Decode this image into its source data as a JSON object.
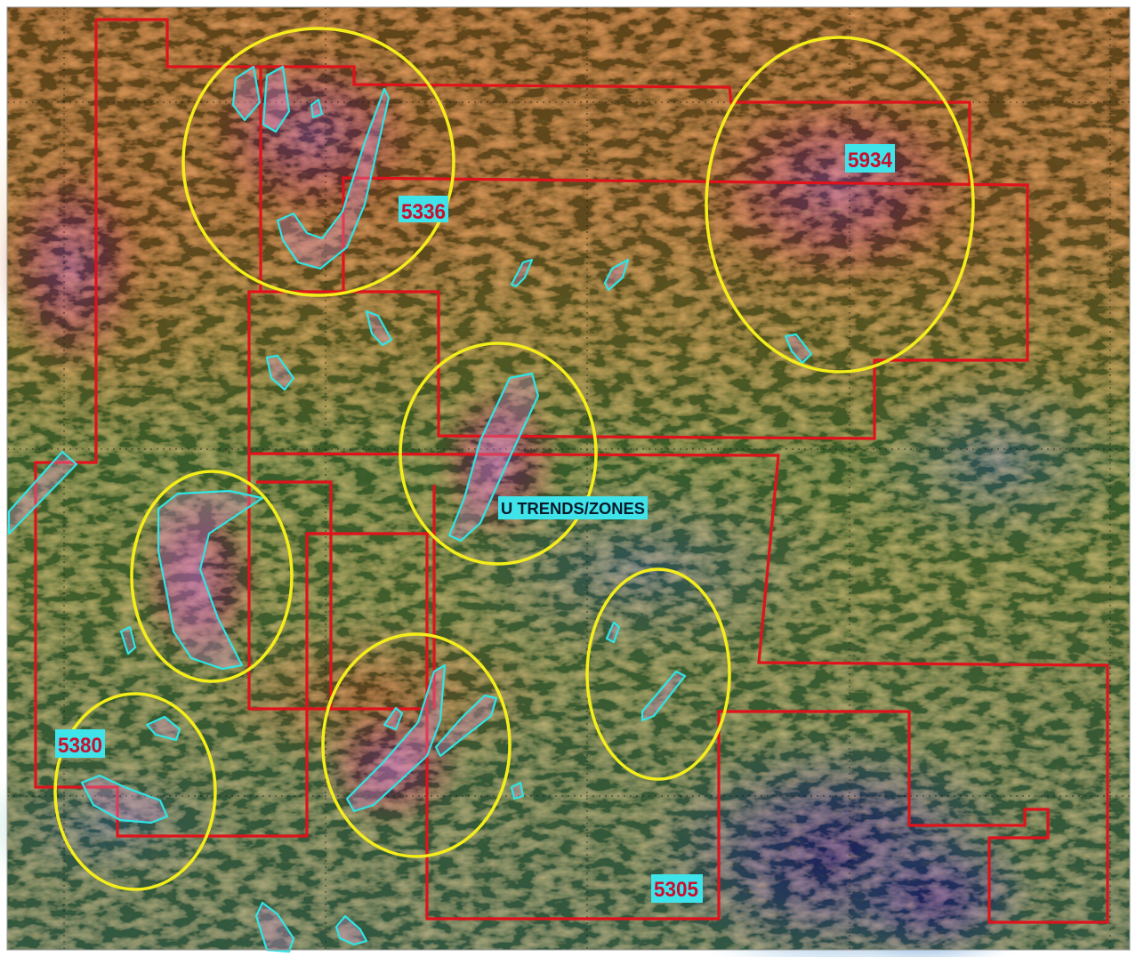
{
  "map": {
    "claim_labels": {
      "c5336": "5336",
      "c5934": "5934",
      "c5380": "5380",
      "c5305": "5305"
    },
    "zone_label": "U TRENDS/ZONES",
    "colors": {
      "claim_boundary": "#e0121b",
      "anomaly_outline": "#2ee6e6",
      "target_circle": "#f5ee1a",
      "label_bg": "#3fe3ea",
      "grid": "#1a1a1a"
    }
  }
}
